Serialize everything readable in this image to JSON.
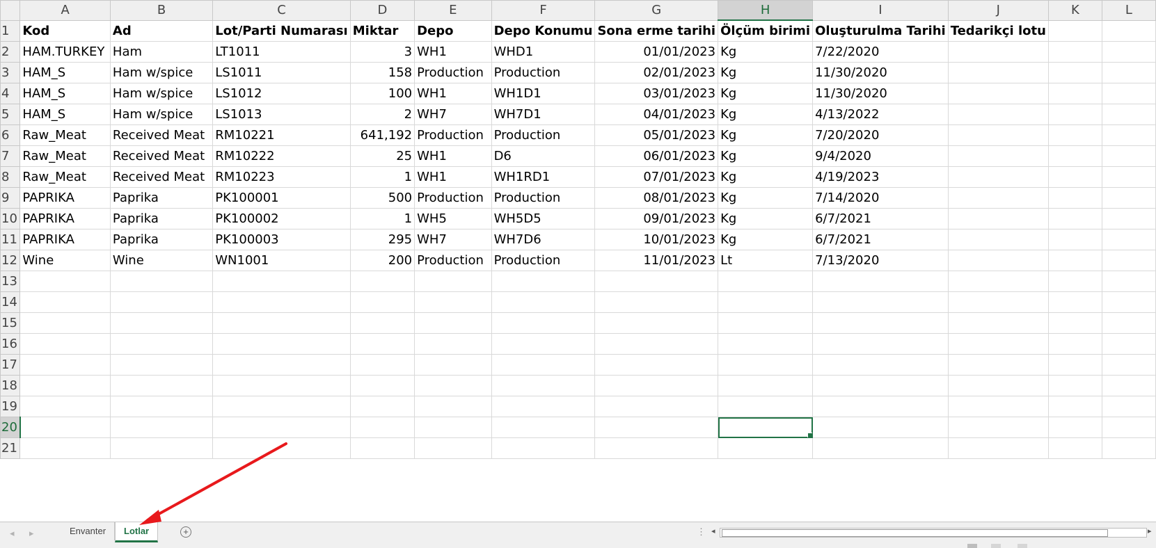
{
  "columns": [
    "A",
    "B",
    "C",
    "D",
    "E",
    "F",
    "G",
    "H",
    "I",
    "J",
    "K",
    "L"
  ],
  "selected_cell": {
    "column": "H",
    "row": "20"
  },
  "headers": [
    "Kod",
    "Ad",
    "Lot/Parti Numarası",
    "Miktar",
    "Depo",
    "Depo Konumu",
    "Sona erme tarihi",
    "Ölçüm birimi",
    "Oluşturulma Tarihi",
    "Tedarikçi lotu"
  ],
  "rows": [
    [
      "HAM.TURKEY",
      "Ham",
      "LT1011",
      "3",
      "WH1",
      "WHD1",
      "01/01/2023",
      "Kg",
      "7/22/2020",
      ""
    ],
    [
      "HAM_S",
      "Ham w/spice",
      "LS1011",
      "158",
      "Production",
      "Production",
      "02/01/2023",
      "Kg",
      "11/30/2020",
      ""
    ],
    [
      "HAM_S",
      "Ham w/spice",
      "LS1012",
      "100",
      "WH1",
      "WH1D1",
      "03/01/2023",
      "Kg",
      "11/30/2020",
      ""
    ],
    [
      "HAM_S",
      "Ham w/spice",
      "LS1013",
      "2",
      "WH7",
      "WH7D1",
      "04/01/2023",
      "Kg",
      "4/13/2022",
      ""
    ],
    [
      "Raw_Meat",
      "Received Meat",
      "RM10221",
      "641,192",
      "Production",
      "Production",
      "05/01/2023",
      "Kg",
      "7/20/2020",
      ""
    ],
    [
      "Raw_Meat",
      "Received Meat",
      "RM10222",
      "25",
      "WH1",
      "D6",
      "06/01/2023",
      "Kg",
      "9/4/2020",
      ""
    ],
    [
      "Raw_Meat",
      "Received Meat",
      "RM10223",
      "1",
      "WH1",
      "WH1RD1",
      "07/01/2023",
      "Kg",
      "4/19/2023",
      ""
    ],
    [
      "PAPRIKA",
      "Paprika",
      "PK100001",
      "500",
      "Production",
      "Production",
      "08/01/2023",
      "Kg",
      "7/14/2020",
      ""
    ],
    [
      "PAPRIKA",
      "Paprika",
      "PK100002",
      "1",
      "WH5",
      "WH5D5",
      "09/01/2023",
      "Kg",
      "6/7/2021",
      ""
    ],
    [
      "PAPRIKA",
      "Paprika",
      "PK100003",
      "295",
      "WH7",
      "WH7D6",
      "10/01/2023",
      "Kg",
      "6/7/2021",
      ""
    ],
    [
      "Wine",
      "Wine",
      "WN1001",
      "200",
      "Production",
      "Production",
      "11/01/2023",
      "Lt",
      "7/13/2020",
      ""
    ]
  ],
  "row_numbers": [
    "1",
    "2",
    "3",
    "4",
    "5",
    "6",
    "7",
    "8",
    "9",
    "10",
    "11",
    "12",
    "13",
    "14",
    "15",
    "16",
    "17",
    "18",
    "19",
    "20",
    "21"
  ],
  "sheet_tabs": [
    {
      "label": "Envanter",
      "active": false
    },
    {
      "label": "Lotlar",
      "active": true
    }
  ],
  "annotation": {
    "type": "arrow",
    "color": "#e8191c",
    "points_to": "Lotlar"
  },
  "icons": {
    "scroll_prev": "triangle-left-icon",
    "scroll_next": "triangle-right-icon",
    "add_sheet": "plus-circle-icon",
    "split": "vertical-dots-icon"
  }
}
